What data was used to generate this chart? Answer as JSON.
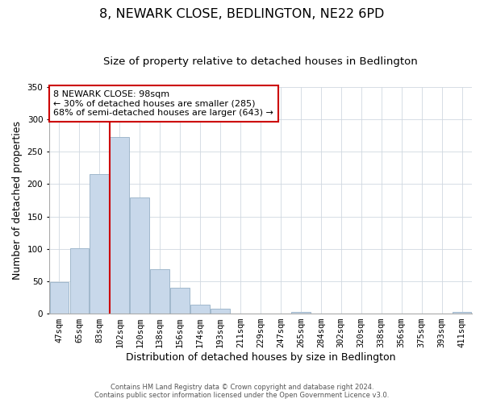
{
  "title": "8, NEWARK CLOSE, BEDLINGTON, NE22 6PD",
  "subtitle": "Size of property relative to detached houses in Bedlington",
  "xlabel": "Distribution of detached houses by size in Bedlington",
  "ylabel": "Number of detached properties",
  "categories": [
    "47sqm",
    "65sqm",
    "83sqm",
    "102sqm",
    "120sqm",
    "138sqm",
    "156sqm",
    "174sqm",
    "193sqm",
    "211sqm",
    "229sqm",
    "247sqm",
    "265sqm",
    "284sqm",
    "302sqm",
    "320sqm",
    "338sqm",
    "356sqm",
    "375sqm",
    "393sqm",
    "411sqm"
  ],
  "values": [
    49,
    101,
    215,
    272,
    179,
    69,
    40,
    14,
    7,
    0,
    0,
    0,
    2,
    0,
    0,
    0,
    0,
    0,
    0,
    0,
    2
  ],
  "bar_color": "#c8d8ea",
  "bar_edge_color": "#a0b8cc",
  "vline_color": "#cc0000",
  "vline_x_index": 3,
  "annotation_title": "8 NEWARK CLOSE: 98sqm",
  "annotation_line1": "← 30% of detached houses are smaller (285)",
  "annotation_line2": "68% of semi-detached houses are larger (643) →",
  "annotation_box_color": "#ffffff",
  "annotation_box_edge": "#cc0000",
  "ylim": [
    0,
    350
  ],
  "yticks": [
    0,
    50,
    100,
    150,
    200,
    250,
    300,
    350
  ],
  "footer_line1": "Contains HM Land Registry data © Crown copyright and database right 2024.",
  "footer_line2": "Contains public sector information licensed under the Open Government Licence v3.0.",
  "title_fontsize": 11.5,
  "subtitle_fontsize": 9.5,
  "xlabel_fontsize": 9,
  "ylabel_fontsize": 9,
  "tick_fontsize": 7.5,
  "annotation_fontsize": 8,
  "footer_fontsize": 6
}
